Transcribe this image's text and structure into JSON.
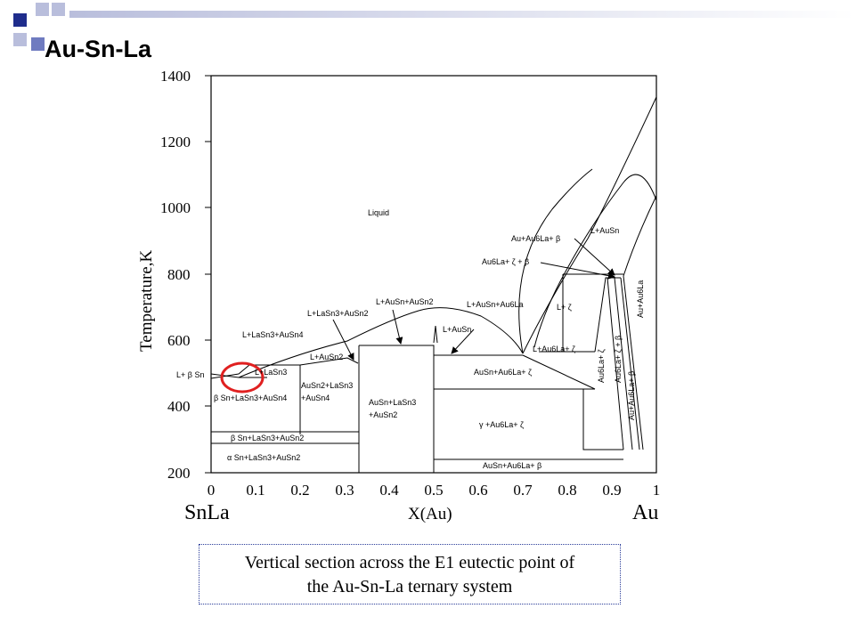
{
  "slide": {
    "title": "Au-Sn-La",
    "caption_line1": "Vertical section across the E1 eutectic point of",
    "caption_line2": "the Au-Sn-La ternary system",
    "accent_color": "#2c3e9a",
    "highlight_color": "#e02020"
  },
  "diagram": {
    "y_axis_label": "Temperature,K",
    "x_axis_label": "X(Au)",
    "left_component": "SnLa",
    "right_component": "Au",
    "y_ticks": [
      "1400",
      "1200",
      "1000",
      "800",
      "600",
      "400",
      "200"
    ],
    "x_ticks": [
      "0",
      "0.1",
      "0.2",
      "0.3",
      "0.4",
      "0.5",
      "0.6",
      "0.7",
      "0.8",
      "0.9",
      "1"
    ],
    "regions": {
      "liquid": "Liquid",
      "l_ausn": "L+AuSn",
      "l_au_au6la_beta": "Au+Au6La+ β",
      "l_au6la_zeta_beta": "Au6La+ ζ + β",
      "l_lasn3_ausn4": "L+LaSn3+AuSn4",
      "l_lasn3_ausn2": "L+LaSn3+AuSn2",
      "l_ausn_ausn2": "L+AuSn+AuSn2",
      "l_ausn_au6la": "L+AuSn+Au6La",
      "l_ausn_b": "L+AuSn",
      "l_zeta": "L+ ζ",
      "l_ausn2": "L+AuSn2",
      "l_beta_sn": "L+ β Sn",
      "l_lasn3": "L+LaSn3",
      "l_au6la_zeta": "L+Au6La+ ζ",
      "ausn_au6la_zeta": "AuSn+Au6La+ ζ",
      "beta_sn_lasn3_ausn4": "β Sn+LaSn3+AuSn4",
      "ausn2_lasn3_1": "AuSn2+LaSn3",
      "ausn2_lasn3_2": "+AuSn4",
      "ausn_lasn3_1": "AuSn+LaSn3",
      "ausn_lasn3_2": "+AuSn2",
      "gamma_au6la_zeta": "γ +Au6La+ ζ",
      "beta_sn_lasn3_ausn2": "β Sn+LaSn3+AuSn2",
      "alpha_sn_lasn3_ausn2": "α Sn+LaSn3+AuSn2",
      "ausn_au6la_beta": "AuSn+Au6La+ β",
      "au6la_zeta": "Au6La+ ζ",
      "au6la_zeta_beta_v": "Au6La+ ζ + β",
      "au_au6la_beta_v": "Au+Au6La+ β",
      "au_au6la_v": "Au+Au6La"
    }
  }
}
